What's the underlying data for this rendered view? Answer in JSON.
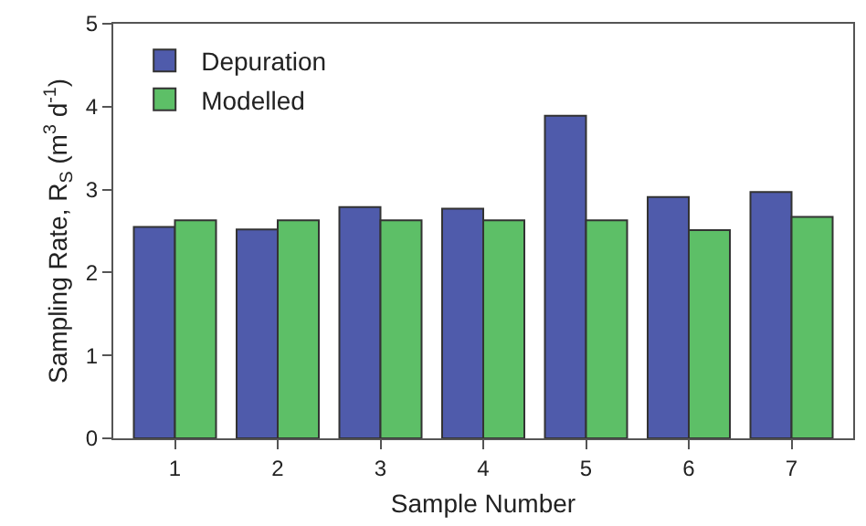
{
  "chart_data": {
    "type": "bar",
    "categories": [
      "1",
      "2",
      "3",
      "4",
      "5",
      "6",
      "7"
    ],
    "series": [
      {
        "name": "Depuration",
        "color": "#4f5bab",
        "values": [
          2.55,
          2.52,
          2.79,
          2.77,
          3.89,
          2.91,
          2.97
        ]
      },
      {
        "name": "Modelled",
        "color": "#5dbf67",
        "values": [
          2.63,
          2.63,
          2.63,
          2.63,
          2.63,
          2.51,
          2.67
        ]
      }
    ],
    "xlabel": "Sample Number",
    "ylabel": "Sampling Rate, R$_{S}$ (m$^{3}$ d$^{-1}$)",
    "ylim": [
      0,
      5
    ],
    "yticks": [
      0,
      1,
      2,
      3,
      4,
      5
    ],
    "legend": "top left"
  }
}
